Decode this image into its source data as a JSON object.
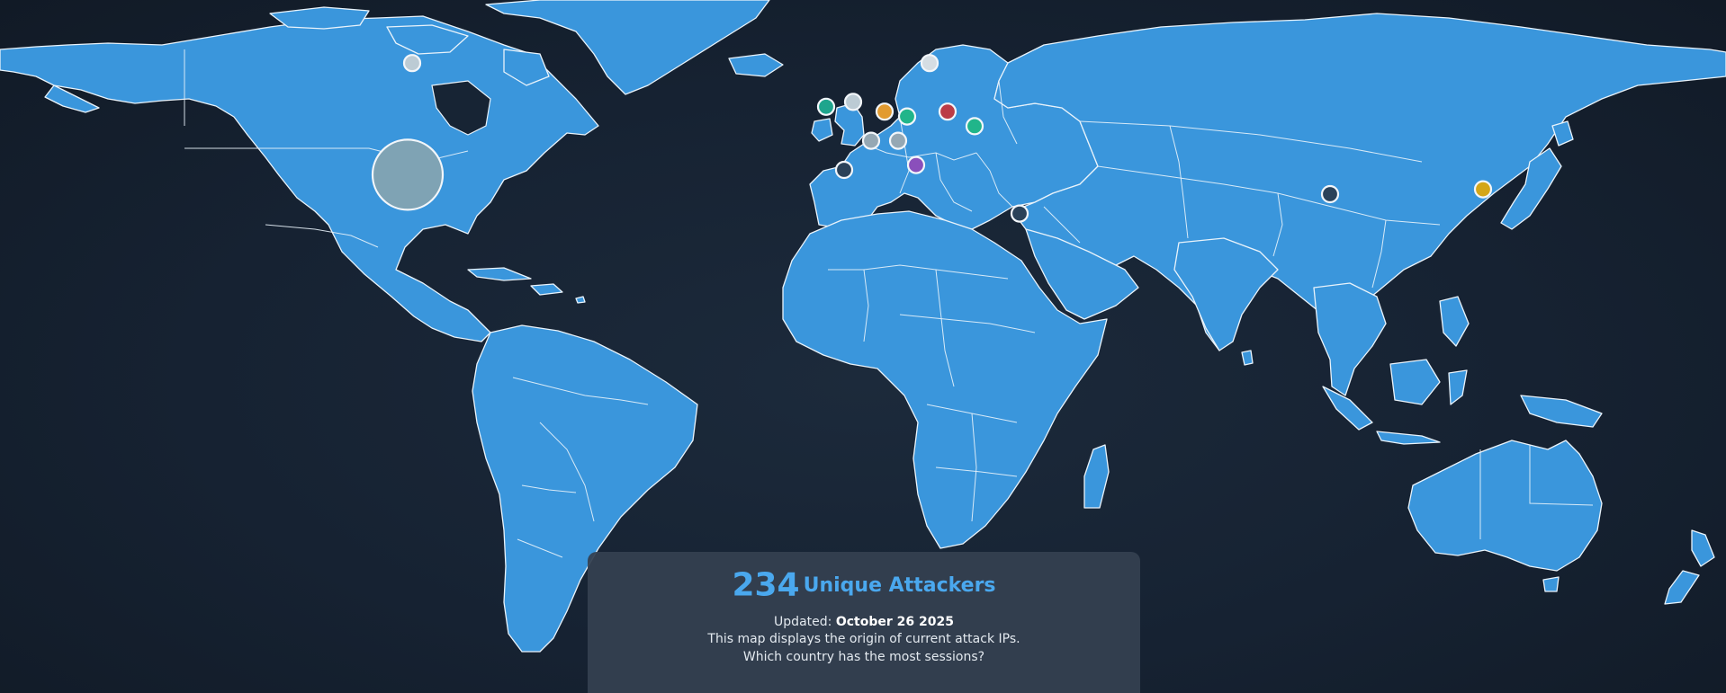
{
  "panel": {
    "count": "234",
    "count_label": "Unique Attackers",
    "updated_prefix": "Updated:",
    "updated_date": "October 26 2025",
    "description": "This map displays the origin of current attack IPs.",
    "question": "Which country has the most sessions?"
  },
  "map": {
    "land_color": "#3a96dc",
    "border_color": "#e9f3fb",
    "ocean_color": "#162232",
    "markers": [
      {
        "name": "united-states",
        "lat": 39,
        "lon": -101,
        "size": "large",
        "color": "#7fa3b4"
      },
      {
        "name": "canada",
        "lat": 62,
        "lon": -100,
        "size": "small",
        "color": "#bccbd4"
      },
      {
        "name": "ireland",
        "lat": 53,
        "lon": -8,
        "size": "small",
        "color": "#1fa58d"
      },
      {
        "name": "united-kingdom",
        "lat": 54,
        "lon": -2,
        "size": "small",
        "color": "#bccbd4"
      },
      {
        "name": "netherlands",
        "lat": 52,
        "lon": 5,
        "size": "small",
        "color": "#e29b30"
      },
      {
        "name": "germany",
        "lat": 51,
        "lon": 10,
        "size": "small",
        "color": "#21b58a"
      },
      {
        "name": "poland",
        "lat": 52,
        "lon": 19,
        "size": "small",
        "color": "#bb3c47"
      },
      {
        "name": "ukraine",
        "lat": 49,
        "lon": 25,
        "size": "small",
        "color": "#21b58a"
      },
      {
        "name": "france",
        "lat": 46,
        "lon": 2,
        "size": "small",
        "color": "#95a8b4"
      },
      {
        "name": "switzerland",
        "lat": 46,
        "lon": 8,
        "size": "small",
        "color": "#95a8b4"
      },
      {
        "name": "italy",
        "lat": 41,
        "lon": 12,
        "size": "small",
        "color": "#8a4fbb"
      },
      {
        "name": "spain",
        "lat": 40,
        "lon": -4,
        "size": "small",
        "color": "#2b4259"
      },
      {
        "name": "sweden",
        "lat": 62,
        "lon": 15,
        "size": "small",
        "color": "#d5dde3"
      },
      {
        "name": "israel",
        "lat": 31,
        "lon": 35,
        "size": "small",
        "color": "#2b4259"
      },
      {
        "name": "china",
        "lat": 35,
        "lon": 104,
        "size": "small",
        "color": "#2b4259"
      },
      {
        "name": "japan",
        "lat": 36,
        "lon": 138,
        "size": "small",
        "color": "#d4a618"
      }
    ]
  }
}
